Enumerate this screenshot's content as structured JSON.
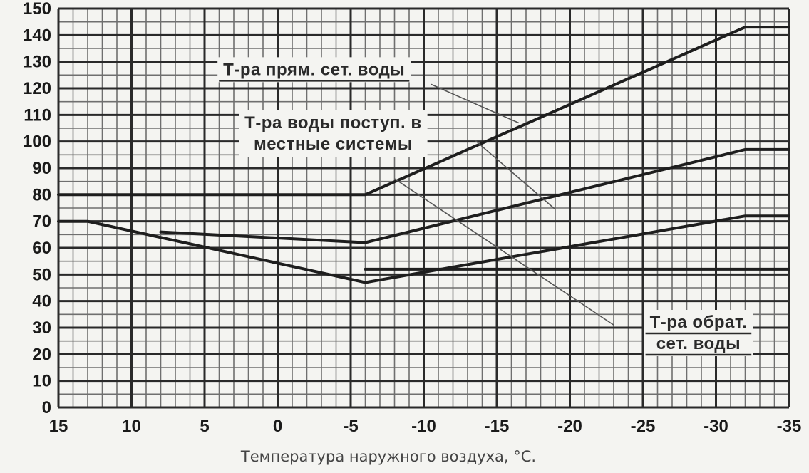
{
  "chart_data": {
    "type": "line",
    "x_label": "Температура наружного воздуха, °C.",
    "y_ticks": [
      0,
      10,
      20,
      30,
      40,
      50,
      60,
      70,
      80,
      90,
      100,
      110,
      120,
      130,
      140,
      150
    ],
    "x_ticks": [
      15,
      10,
      5,
      0,
      -5,
      -10,
      -15,
      -20,
      -25,
      -30,
      -35
    ],
    "x_tick_labels": [
      "15",
      "10",
      "5",
      "0",
      "-5",
      "-10",
      "-15",
      "-20",
      "-25",
      "-30",
      "-35"
    ],
    "xlim": [
      15,
      -35
    ],
    "ylim": [
      0,
      150
    ],
    "grid": true,
    "series": [
      {
        "name": "Т-ра прям. сет. воды",
        "x": [
          15,
          -6,
          -32,
          -35
        ],
        "y": [
          80,
          80,
          143,
          143
        ]
      },
      {
        "name": "Т-ра воды поступ. в местные системы",
        "x": [
          8,
          -6,
          -32,
          -35
        ],
        "y": [
          66,
          62,
          97,
          97
        ]
      },
      {
        "name": "Т-ра обрат. сет. воды",
        "x": [
          15,
          13,
          -6,
          -32,
          -35
        ],
        "y": [
          70,
          70,
          47,
          72,
          72
        ]
      },
      {
        "name": "",
        "x": [
          -6,
          -35
        ],
        "y": [
          52,
          52
        ]
      }
    ],
    "annotations": [
      {
        "lines": [
          "Т-ра прям. сет. воды"
        ],
        "underline": true,
        "label_at": [
          -2.5,
          125
        ],
        "leader_from": [
          -10.5,
          121.5
        ],
        "leader_to": [
          -16.5,
          107
        ]
      },
      {
        "lines": [
          "Т-ра воды поступ. в",
          "местные системы"
        ],
        "underline": false,
        "label_at": [
          -3.8,
          105
        ],
        "leader_from": [
          -13.5,
          100.5
        ],
        "leader_to": [
          -19,
          74.5
        ]
      },
      {
        "lines": [
          "Т-ра обрат.",
          "сет. воды"
        ],
        "underline": true,
        "label_at": [
          -28.8,
          30
        ],
        "leader_from": [
          -23,
          31
        ],
        "leader_to": [
          -8,
          86
        ]
      }
    ]
  }
}
